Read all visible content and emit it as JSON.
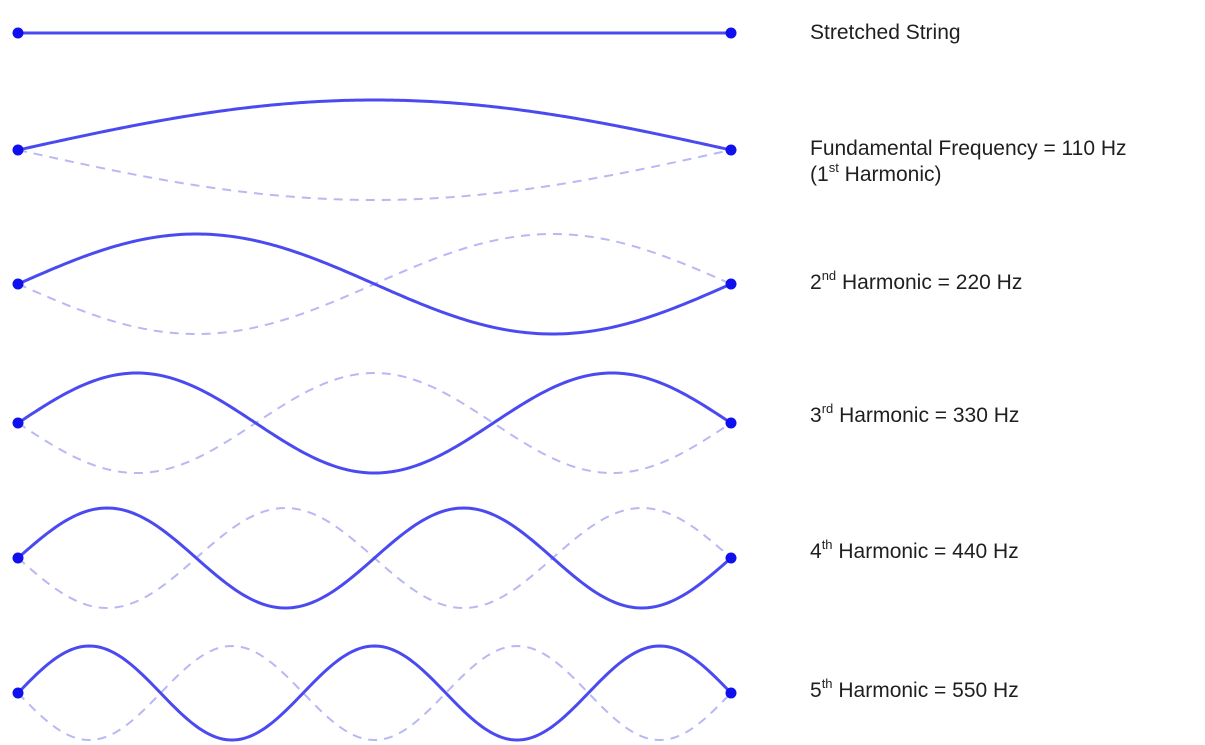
{
  "colors": {
    "string": "#4a4af0",
    "dashed": "#b8b8f5",
    "node": "#1010ee",
    "text": "#1f1f1f"
  },
  "rows": [
    {
      "harmonic": 0,
      "label": {
        "pre": "",
        "sup": "",
        "post": "Stretched String"
      }
    },
    {
      "harmonic": 1,
      "label": {
        "pre": "Fundamental Frequency = 110 Hz",
        "line2_pre": "(1",
        "sup": "st",
        "post": " Harmonic)"
      }
    },
    {
      "harmonic": 2,
      "label": {
        "pre": "2",
        "sup": "nd",
        "post": " Harmonic = 220 Hz"
      }
    },
    {
      "harmonic": 3,
      "label": {
        "pre": "3",
        "sup": "rd",
        "post": " Harmonic = 330 Hz"
      }
    },
    {
      "harmonic": 4,
      "label": {
        "pre": "4",
        "sup": "th",
        "post": " Harmonic = 440 Hz"
      }
    },
    {
      "harmonic": 5,
      "label": {
        "pre": "5",
        "sup": "th",
        "post": " Harmonic = 550 Hz"
      }
    }
  ]
}
